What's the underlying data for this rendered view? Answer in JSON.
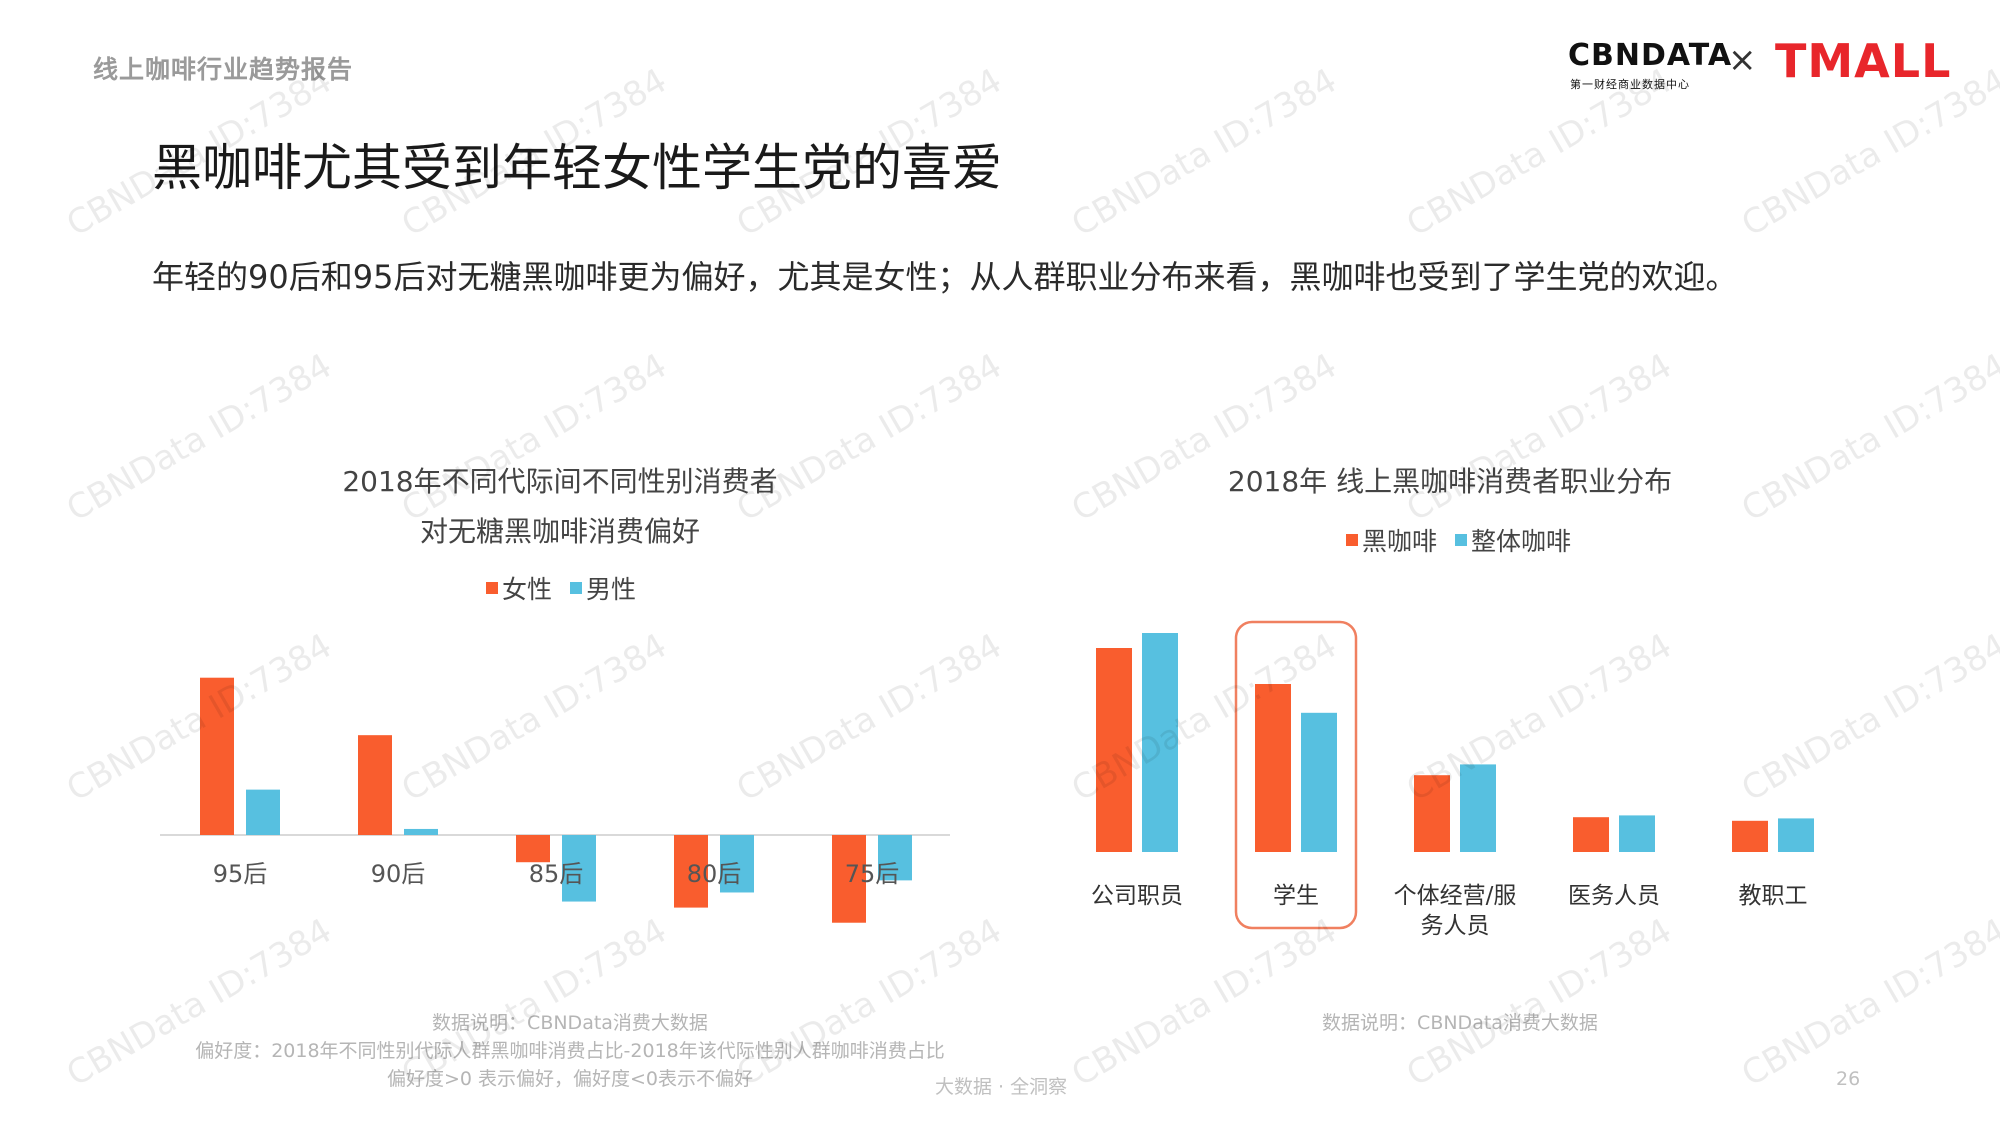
{
  "header": {
    "report_label": "线上咖啡行业趋势报告",
    "title": "黑咖啡尤其受到年轻女性学生党的喜爱",
    "subtitle": "年轻的90后和95后对无糖黑咖啡更为偏好，尤其是女性；从人群职业分布来看，黑咖啡也受到了学生党的欢迎。"
  },
  "logo": {
    "cbndata": "CBNDATA",
    "cbndata_sub": "第一财经商业数据中心",
    "times": "×",
    "tmall": "TMALL"
  },
  "colors": {
    "female": "#f95d2e",
    "male": "#57c0e0",
    "highlight": "#f08060"
  },
  "chart_data": [
    {
      "type": "bar",
      "title_line1": "2018年不同代际间不同性别消费者",
      "title_line2": "对无糖黑咖啡消费偏好",
      "legend_position": "top-center",
      "categories": [
        "95后",
        "90后",
        "85后",
        "80后",
        "75后"
      ],
      "series": [
        {
          "name": "女性",
          "values": [
            0.26,
            0.165,
            -0.045,
            -0.12,
            -0.145
          ]
        },
        {
          "name": "男性",
          "values": [
            0.075,
            0.01,
            -0.11,
            -0.095,
            -0.075
          ]
        }
      ],
      "ylim": [
        -0.2,
        0.3
      ],
      "grid": false
    },
    {
      "type": "bar",
      "title": "2018年 线上黑咖啡消费者职业分布",
      "legend_position": "top-center",
      "categories": [
        "公司职员",
        "学生",
        "个体经营/服务人员",
        "医务人员",
        "教职工"
      ],
      "series": [
        {
          "name": "黑咖啡",
          "values": [
            0.34,
            0.28,
            0.128,
            0.058,
            0.052
          ]
        },
        {
          "name": "整体咖啡",
          "values": [
            0.365,
            0.232,
            0.146,
            0.061,
            0.056
          ]
        }
      ],
      "highlighted_category": "学生",
      "ylim": [
        0,
        0.4
      ],
      "grid": false
    }
  ],
  "notes": {
    "left_line1": "数据说明：CBNData消费大数据",
    "left_line2": "偏好度：2018年不同性别代际人群黑咖啡消费占比-2018年该代际性别人群咖啡消费占比",
    "left_line3": "偏好度>0 表示偏好，偏好度<0表示不偏好",
    "right_line1": "数据说明：CBNData消费大数据"
  },
  "footer": {
    "center": "大数据 · 全洞察",
    "page_number": "26"
  },
  "watermark": "CBNData ID:7384"
}
